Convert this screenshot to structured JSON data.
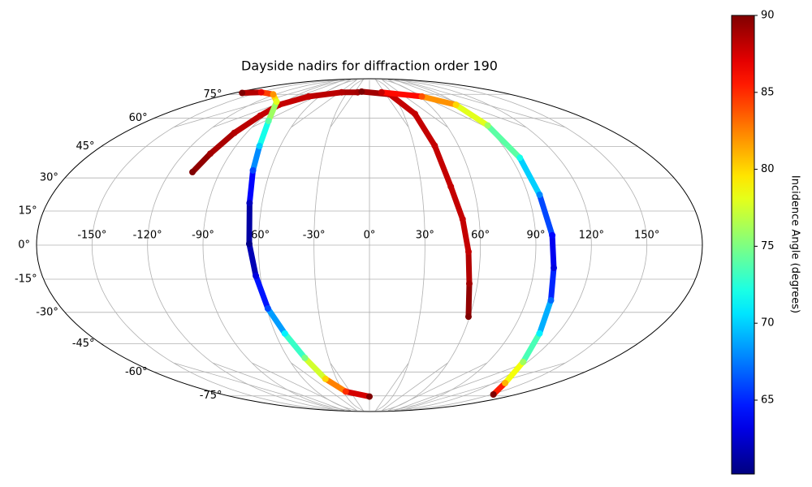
{
  "chart_data": {
    "type": "scatter",
    "projection": "mollweide",
    "title": "Dayside nadirs for diffraction order 190",
    "colormap": "jet",
    "grid": true,
    "xticks": [
      {
        "value": -150,
        "label": "-150°"
      },
      {
        "value": -120,
        "label": "-120°"
      },
      {
        "value": -90,
        "label": "-90°"
      },
      {
        "value": -60,
        "label": "-60°"
      },
      {
        "value": -30,
        "label": "-30°"
      },
      {
        "value": 0,
        "label": "0°"
      },
      {
        "value": 30,
        "label": "30°"
      },
      {
        "value": 60,
        "label": "60°"
      },
      {
        "value": 90,
        "label": "90°"
      },
      {
        "value": 120,
        "label": "120°"
      },
      {
        "value": 150,
        "label": "150°"
      }
    ],
    "yticks": [
      {
        "value": -75,
        "label": "-75°"
      },
      {
        "value": -60,
        "label": "-60°"
      },
      {
        "value": -45,
        "label": "-45°"
      },
      {
        "value": -30,
        "label": "-30°"
      },
      {
        "value": -15,
        "label": "-15°"
      },
      {
        "value": 0,
        "label": "0°"
      },
      {
        "value": 15,
        "label": "15°"
      },
      {
        "value": 30,
        "label": "30°"
      },
      {
        "value": 45,
        "label": "45°"
      },
      {
        "value": 60,
        "label": "60°"
      },
      {
        "value": 75,
        "label": "75°"
      }
    ],
    "colorbar": {
      "label": "Incidence Angle (degrees)",
      "lim": [
        60.2,
        90
      ],
      "ticks": [
        65,
        70,
        75,
        80,
        85,
        90
      ]
    },
    "series": [
      {
        "lon": [
          -106.5,
          -103,
          -99,
          -94,
          -91,
          -73,
          -38,
          -16
        ],
        "lat": [
          32.7,
          41.5,
          52,
          61.5,
          68,
          73.5,
          76.5,
          76.5
        ],
        "values": [
          90,
          89,
          88.5,
          88,
          88,
          88,
          88.5,
          89
        ]
      },
      {
        "lon": [
          -11,
          26,
          40,
          44,
          47,
          51,
          53.6,
          55.5,
          59.3
        ],
        "lat": [
          77,
          75,
          62.5,
          45.5,
          26,
          11.4,
          -2.9,
          -17,
          -32
        ],
        "values": [
          90,
          88,
          88,
          88,
          88,
          88,
          88,
          89,
          90
        ]
      },
      {
        "lon": [
          -170,
          -148,
          -123,
          -99,
          -82,
          -74,
          -70.5,
          -67,
          -65,
          -62.5,
          -59.4,
          -54,
          -47.5,
          -40,
          -27,
          0
        ],
        "lat": [
          76,
          76.5,
          75,
          70,
          58.5,
          45.3,
          33.5,
          18.6,
          0.6,
          -13.5,
          -28.2,
          -40,
          -52.3,
          -64,
          -72,
          -75.5
        ],
        "values": [
          90,
          87,
          82,
          78,
          74,
          70,
          66,
          62,
          60.5,
          63,
          66,
          71,
          75,
          80,
          85,
          90
        ]
      },
      {
        "lon": [
          16.5,
          63,
          87,
          92,
          95.5,
          96.5,
          99,
          100.6,
          104,
          108.5,
          116.7,
          131,
          152
        ],
        "lat": [
          76.5,
          73.5,
          68,
          56,
          39.5,
          22.3,
          4.3,
          -10,
          -24.5,
          -40,
          -54.5,
          -66.5,
          -74
        ],
        "values": [
          88,
          84,
          80,
          76,
          72,
          68,
          64,
          63,
          67,
          71,
          76,
          81,
          90
        ]
      }
    ]
  }
}
